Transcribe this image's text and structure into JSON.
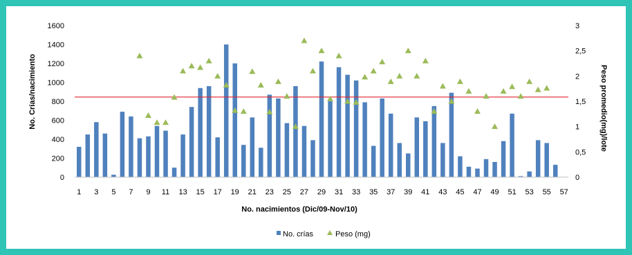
{
  "colors": {
    "background": "#2ec4b6",
    "bar": "#4f81bd",
    "marker": "#9bbb59",
    "line": "#e0242b",
    "axis": "#bfbfbf"
  },
  "chart_data": {
    "type": "bar",
    "xlabel": "No. nacimientos (Dic/09-Nov/10)",
    "ylabel": "No. Crías/nacimiento",
    "y2label": "Peso promedio(mg)/lote",
    "ylim": [
      0,
      1600
    ],
    "yticks": [
      0,
      200,
      400,
      600,
      800,
      1000,
      1200,
      1400,
      1600
    ],
    "y2lim": [
      0,
      3
    ],
    "y2ticks": [
      "0",
      "0,5",
      "1",
      "1,5",
      "2",
      "2,5",
      "3"
    ],
    "xticks": [
      "1",
      "3",
      "5",
      "7",
      "9",
      "11",
      "13",
      "15",
      "17",
      "19",
      "21",
      "23",
      "25",
      "27",
      "29",
      "31",
      "33",
      "35",
      "37",
      "39",
      "41",
      "43",
      "45",
      "47",
      "49",
      "51",
      "53",
      "55",
      "57"
    ],
    "grid": false,
    "legend_position": "bottom",
    "legend": [
      "No. crías",
      "Peso (mg)"
    ],
    "x": [
      1,
      2,
      3,
      4,
      5,
      6,
      7,
      8,
      9,
      10,
      11,
      12,
      13,
      14,
      15,
      16,
      17,
      18,
      19,
      20,
      21,
      22,
      23,
      24,
      25,
      26,
      27,
      28,
      29,
      30,
      31,
      32,
      33,
      34,
      35,
      36,
      37,
      38,
      39,
      40,
      41,
      42,
      43,
      44,
      45,
      46,
      47,
      48,
      49,
      50,
      51,
      52,
      53,
      54,
      55,
      56,
      57
    ],
    "series": [
      {
        "name": "No. crías",
        "type": "bar",
        "axis": "left",
        "values": [
          320,
          450,
          580,
          460,
          25,
          690,
          640,
          410,
          430,
          540,
          490,
          100,
          450,
          740,
          940,
          960,
          420,
          1400,
          1200,
          340,
          630,
          310,
          870,
          830,
          570,
          960,
          540,
          390,
          1220,
          800,
          1160,
          1080,
          1020,
          790,
          330,
          830,
          670,
          360,
          250,
          630,
          590,
          750,
          360,
          890,
          220,
          110,
          90,
          190,
          160,
          380,
          670,
          10,
          60,
          390,
          360,
          130,
          0
        ]
      },
      {
        "name": "Peso (mg)",
        "type": "scatter",
        "axis": "right",
        "values": [
          null,
          null,
          null,
          null,
          null,
          null,
          null,
          2.4,
          1.22,
          1.08,
          1.08,
          1.58,
          2.1,
          2.2,
          2.17,
          2.3,
          2.0,
          1.82,
          1.32,
          1.3,
          2.09,
          1.82,
          1.29,
          1.89,
          1.6,
          1.0,
          2.7,
          2.1,
          2.5,
          1.55,
          2.4,
          1.5,
          1.48,
          1.98,
          2.1,
          2.28,
          1.89,
          2.0,
          2.5,
          2.0,
          2.3,
          1.3,
          1.8,
          1.5,
          1.89,
          1.7,
          1.3,
          1.6,
          1.0,
          1.7,
          1.79,
          1.6,
          1.89,
          1.73,
          1.76,
          null,
          null
        ]
      }
    ],
    "reference_line": {
      "axis": "left",
      "value": 845
    }
  }
}
